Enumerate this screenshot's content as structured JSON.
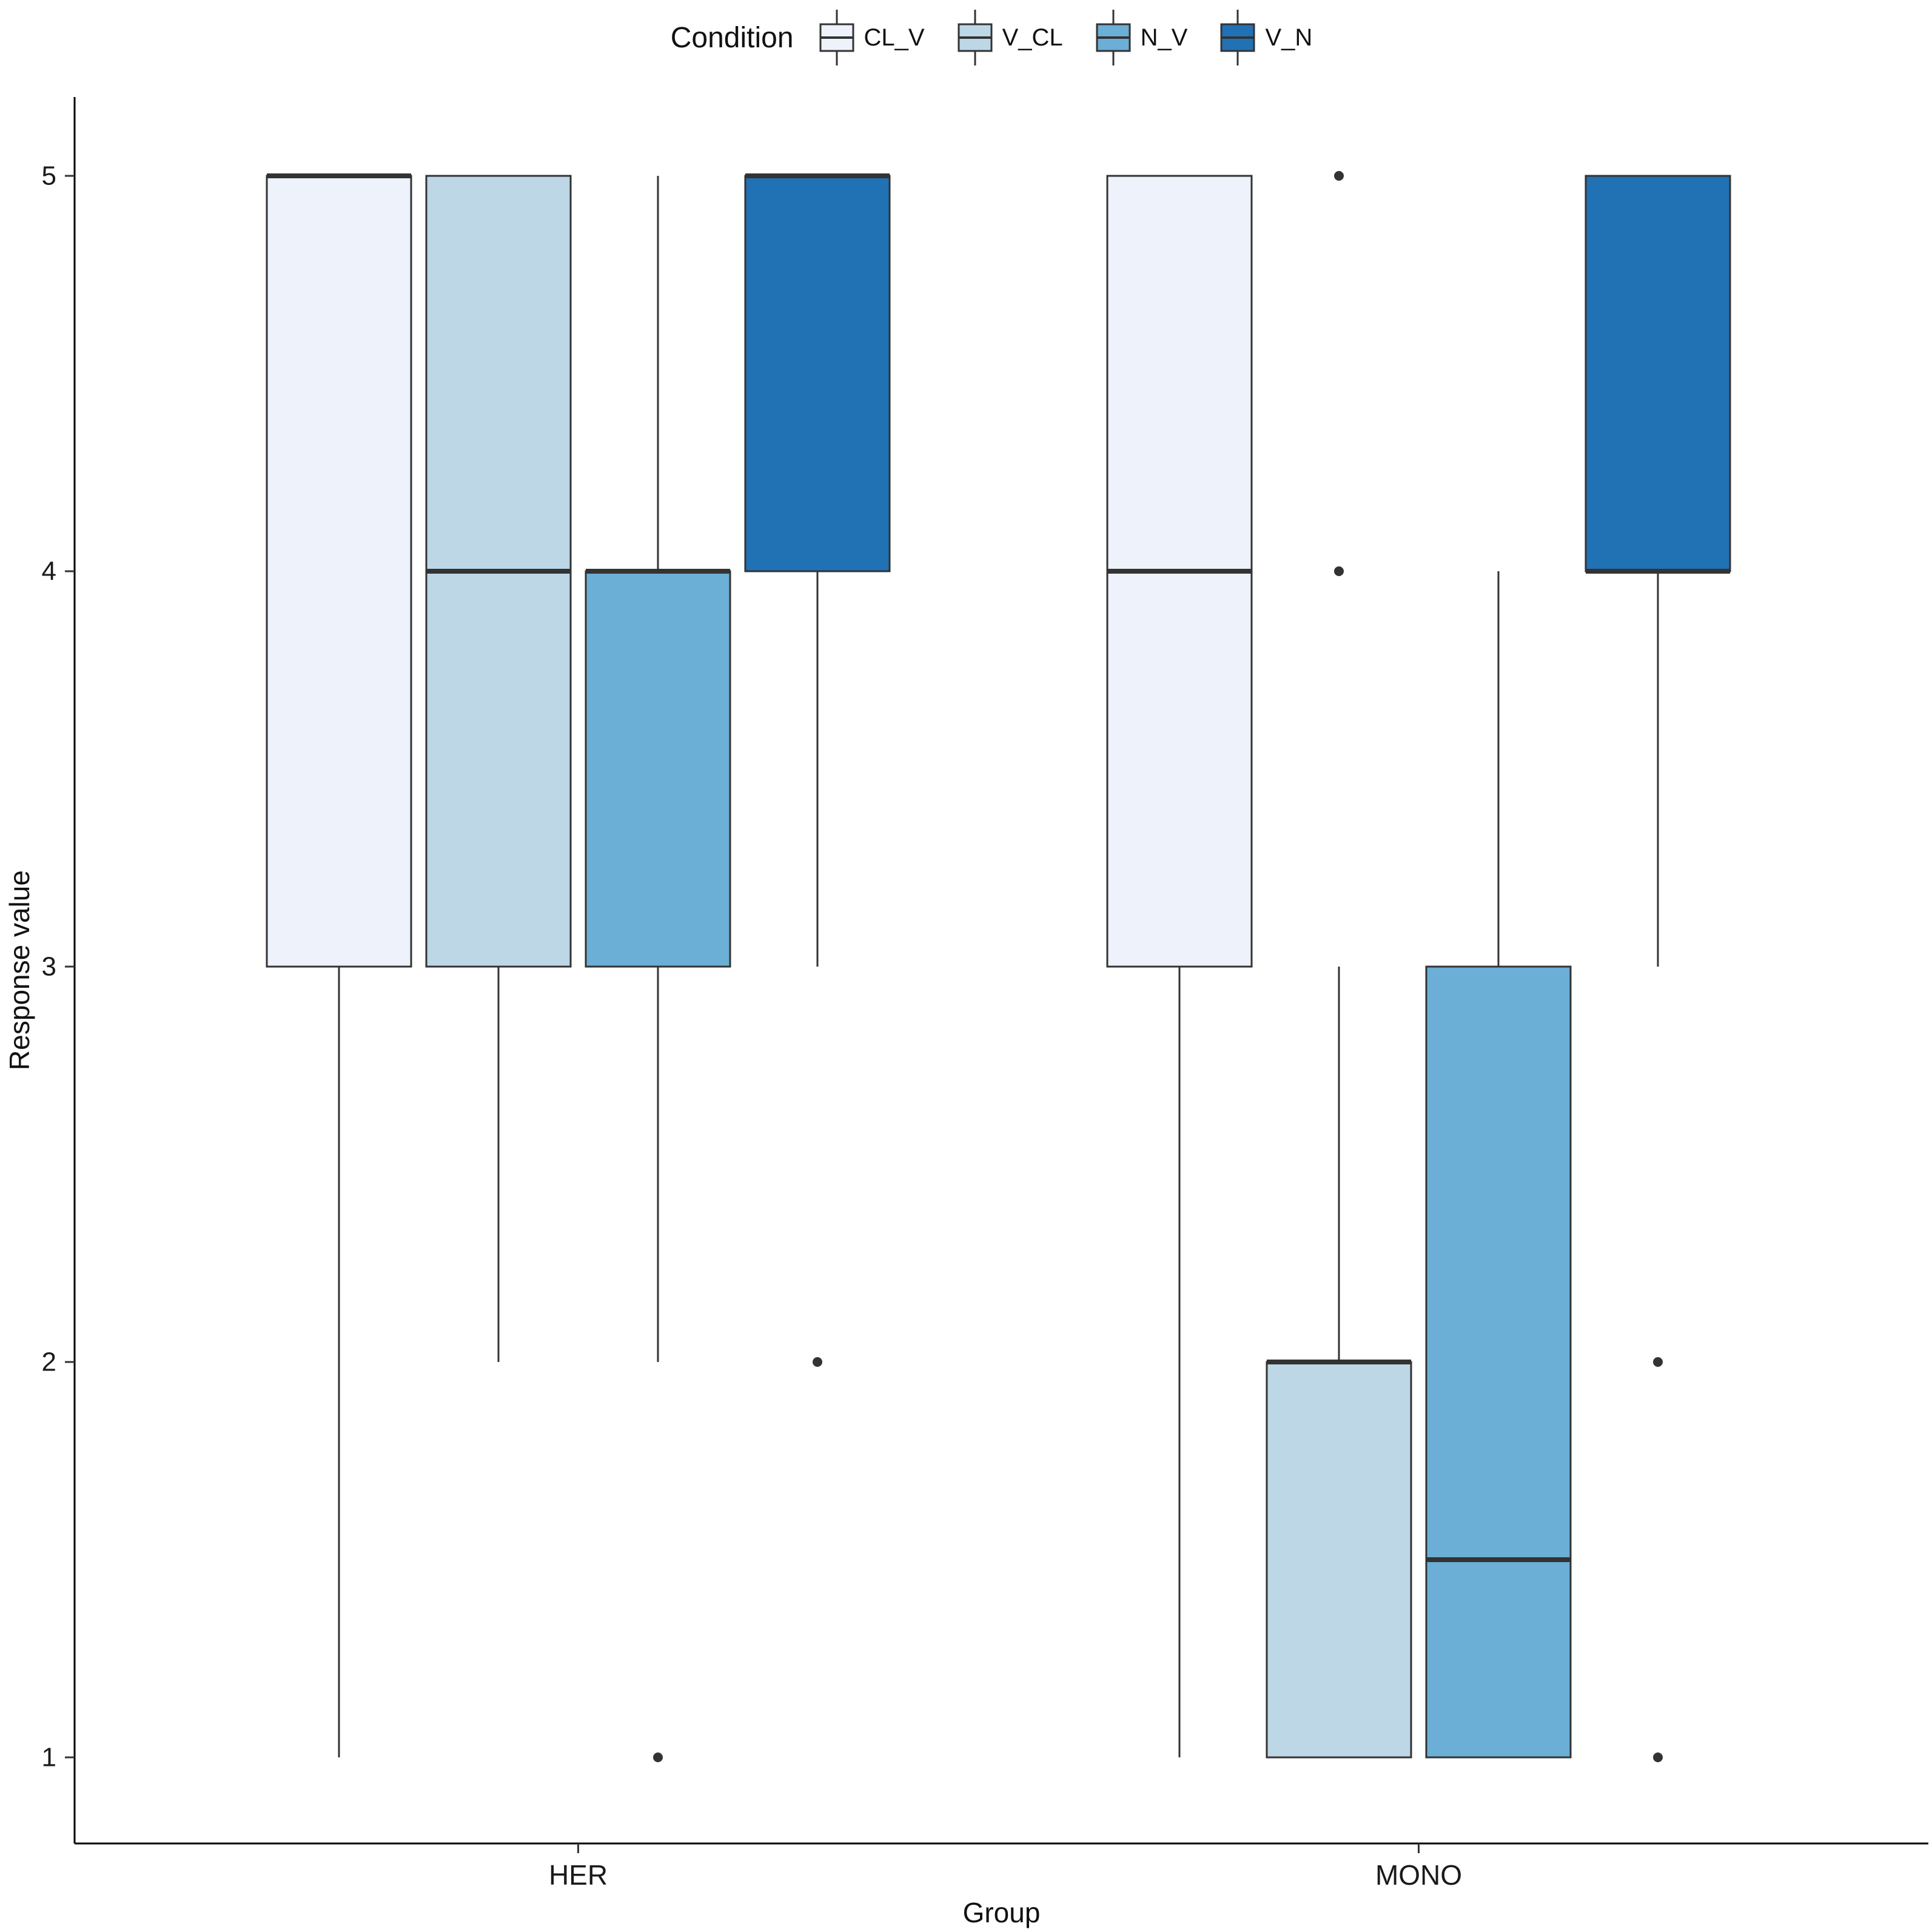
{
  "legend": {
    "title": "Condition"
  },
  "axes": {
    "y_label": "Response value",
    "x_label": "Group",
    "y_tick_labels": [
      "1",
      "2",
      "3",
      "4",
      "5"
    ],
    "x_tick_labels": [
      "HER",
      "MONO"
    ]
  },
  "chart_data": {
    "type": "boxplot",
    "title": "",
    "xlabel": "Group",
    "ylabel": "Response value",
    "ylim": [
      1,
      5
    ],
    "y_ticks": [
      1,
      2,
      3,
      4,
      5
    ],
    "groups": [
      "HER",
      "MONO"
    ],
    "legend_title": "Condition",
    "legend_position": "top",
    "grid": false,
    "stroke_color": "#333333",
    "outlier_color": "#333333",
    "series": [
      {
        "name": "CL_V",
        "fill": "#EDF2FB",
        "boxes": [
          {
            "group": "HER",
            "whisker_low": 1,
            "q1": 3,
            "median": 5,
            "q3": 5,
            "whisker_high": 5,
            "outliers": []
          },
          {
            "group": "MONO",
            "whisker_low": 1,
            "q1": 3,
            "median": 4,
            "q3": 5,
            "whisker_high": 5,
            "outliers": []
          }
        ]
      },
      {
        "name": "V_CL",
        "fill": "#BDD7E7",
        "boxes": [
          {
            "group": "HER",
            "whisker_low": 2,
            "q1": 3,
            "median": 4,
            "q3": 5,
            "whisker_high": 5,
            "outliers": []
          },
          {
            "group": "MONO",
            "whisker_low": 1,
            "q1": 1,
            "median": 2,
            "q3": 2,
            "whisker_high": 3,
            "outliers": [
              4,
              5
            ]
          }
        ]
      },
      {
        "name": "N_V",
        "fill": "#6BAED6",
        "boxes": [
          {
            "group": "HER",
            "whisker_low": 2,
            "q1": 3,
            "median": 4,
            "q3": 4,
            "whisker_high": 5,
            "outliers": [
              1
            ]
          },
          {
            "group": "MONO",
            "whisker_low": 1,
            "q1": 1,
            "median": 1.5,
            "q3": 3,
            "whisker_high": 4,
            "outliers": []
          }
        ]
      },
      {
        "name": "V_N",
        "fill": "#2171B5",
        "boxes": [
          {
            "group": "HER",
            "whisker_low": 3,
            "q1": 4,
            "median": 5,
            "q3": 5,
            "whisker_high": 5,
            "outliers": [
              2
            ]
          },
          {
            "group": "MONO",
            "whisker_low": 3,
            "q1": 4,
            "median": 4,
            "q3": 5,
            "whisker_high": 5,
            "outliers": [
              1,
              2
            ]
          }
        ]
      }
    ]
  }
}
